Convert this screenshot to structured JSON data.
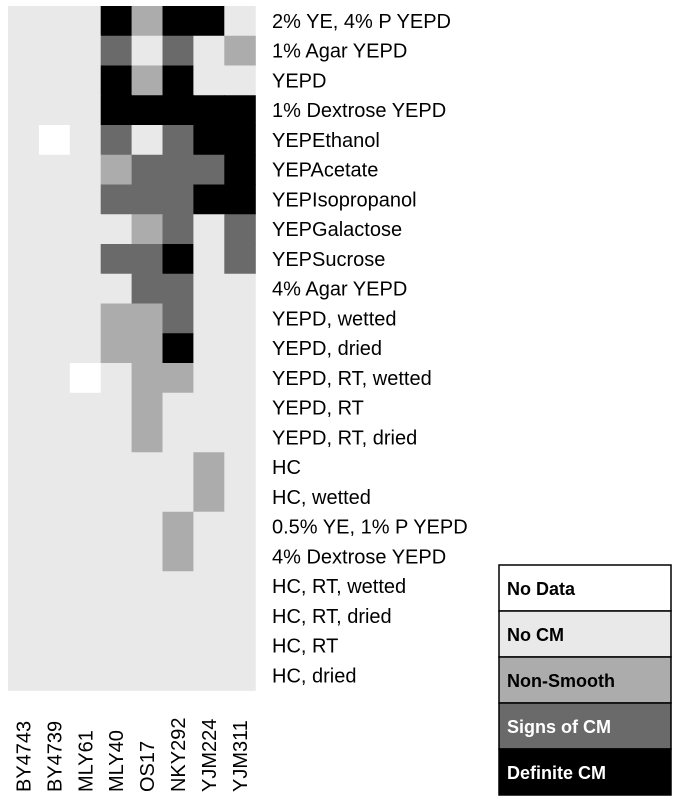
{
  "chart_data": {
    "type": "heatmap",
    "columns": [
      "BY4743",
      "BY4739",
      "MLY61",
      "MLY40",
      "OS17",
      "NKY292",
      "YJM224",
      "YJM311"
    ],
    "rows": [
      "2% YE, 4% P YEPD",
      "1% Agar YEPD",
      "YEPD",
      "1% Dextrose YEPD",
      "YEPEthanol",
      "YEPAcetate",
      "YEPIsopropanol",
      "YEPGalactose",
      "YEPSucrose",
      "4% Agar YEPD",
      "YEPD, wetted",
      "YEPD, dried",
      "YEPD, RT, wetted",
      "YEPD, RT",
      "YEPD, RT, dried",
      "HC",
      "HC, wetted",
      "0.5% YE, 1% P YEPD",
      "4% Dextrose YEPD",
      "HC, RT, wetted",
      "HC, RT, dried",
      "HC, RT",
      "HC, dried"
    ],
    "categories": [
      "No Data",
      "No CM",
      "Non-Smooth",
      "Signs of CM",
      "Definite CM"
    ],
    "colors": [
      "#ffffff",
      "#e9e9e9",
      "#acacac",
      "#6a6a6a",
      "#000000"
    ],
    "legend_text_colors": [
      "#000000",
      "#000000",
      "#000000",
      "#ffffff",
      "#ffffff"
    ],
    "values": [
      [
        1,
        1,
        1,
        4,
        2,
        4,
        4,
        1
      ],
      [
        1,
        1,
        1,
        3,
        1,
        3,
        1,
        2
      ],
      [
        1,
        1,
        1,
        4,
        2,
        4,
        1,
        1
      ],
      [
        1,
        1,
        1,
        4,
        4,
        4,
        4,
        4
      ],
      [
        1,
        0,
        1,
        3,
        1,
        3,
        4,
        4
      ],
      [
        1,
        1,
        1,
        2,
        3,
        3,
        3,
        4
      ],
      [
        1,
        1,
        1,
        3,
        3,
        3,
        4,
        4
      ],
      [
        1,
        1,
        1,
        1,
        2,
        3,
        1,
        3
      ],
      [
        1,
        1,
        1,
        3,
        3,
        4,
        1,
        3
      ],
      [
        1,
        1,
        1,
        1,
        3,
        3,
        1,
        1
      ],
      [
        1,
        1,
        1,
        2,
        2,
        3,
        1,
        1
      ],
      [
        1,
        1,
        1,
        2,
        2,
        4,
        1,
        1
      ],
      [
        1,
        1,
        0,
        1,
        2,
        2,
        1,
        1
      ],
      [
        1,
        1,
        1,
        1,
        2,
        1,
        1,
        1
      ],
      [
        1,
        1,
        1,
        1,
        2,
        1,
        1,
        1
      ],
      [
        1,
        1,
        1,
        1,
        1,
        1,
        2,
        1
      ],
      [
        1,
        1,
        1,
        1,
        1,
        1,
        2,
        1
      ],
      [
        1,
        1,
        1,
        1,
        1,
        2,
        1,
        1
      ],
      [
        1,
        1,
        1,
        1,
        1,
        2,
        1,
        1
      ],
      [
        1,
        1,
        1,
        1,
        1,
        1,
        1,
        1
      ],
      [
        1,
        1,
        1,
        1,
        1,
        1,
        1,
        1
      ],
      [
        1,
        1,
        1,
        1,
        1,
        1,
        1,
        1
      ],
      [
        1,
        1,
        1,
        1,
        1,
        1,
        1,
        1
      ]
    ],
    "legend_placement": "bottom-right",
    "grid": false
  }
}
